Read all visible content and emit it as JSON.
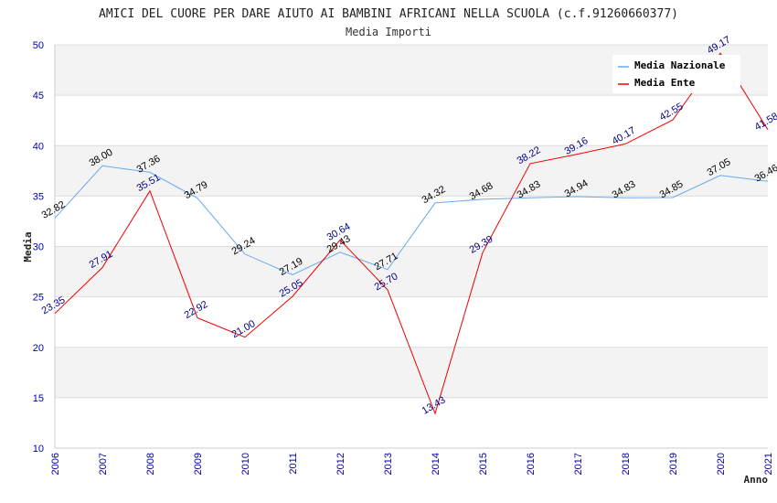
{
  "chart_data": {
    "type": "line",
    "title": "AMICI DEL CUORE PER DARE AIUTO AI BAMBINI AFRICANI NELLA SCUOLA (c.f.91260660377)",
    "subtitle": "Media Importi",
    "xlabel": "Anno",
    "ylabel": "Media",
    "ylim": [
      10,
      50
    ],
    "yticks": [
      "10",
      "15",
      "20",
      "25",
      "30",
      "35",
      "40",
      "45",
      "50"
    ],
    "categories": [
      "2006",
      "2007",
      "2008",
      "2009",
      "2010",
      "2011",
      "2012",
      "2013",
      "2014",
      "2015",
      "2016",
      "2017",
      "2018",
      "2019",
      "2020",
      "2021"
    ],
    "grid": true,
    "legend_position": "top-right",
    "series": [
      {
        "name": "Media Nazionale",
        "color": "#66aaee",
        "label_color": "#000000",
        "values": [
          32.82,
          38.0,
          37.36,
          34.79,
          29.24,
          27.19,
          29.43,
          27.71,
          34.32,
          34.68,
          34.83,
          34.94,
          34.83,
          34.85,
          37.05,
          36.46
        ],
        "labels": [
          "32.82",
          "38.00",
          "37.36",
          "34.79",
          "29.24",
          "27.19",
          "29.43",
          "27.71",
          "34.32",
          "34.68",
          "34.83",
          "34.94",
          "34.83",
          "34.85",
          "37.05",
          "36.46"
        ]
      },
      {
        "name": "Media Ente",
        "color": "#ee0000",
        "label_color": "#000088",
        "values": [
          23.35,
          27.91,
          35.51,
          22.92,
          21.0,
          25.05,
          30.64,
          25.7,
          13.43,
          29.39,
          38.22,
          39.16,
          40.17,
          42.55,
          49.17,
          41.58
        ],
        "labels": [
          "23.35",
          "27.91",
          "35.51",
          "22.92",
          "21.00",
          "25.05",
          "30.64",
          "25.70",
          "13.43",
          "29.39",
          "38.22",
          "39.16",
          "40.17",
          "42.55",
          "49.17",
          "41.58"
        ]
      }
    ]
  }
}
